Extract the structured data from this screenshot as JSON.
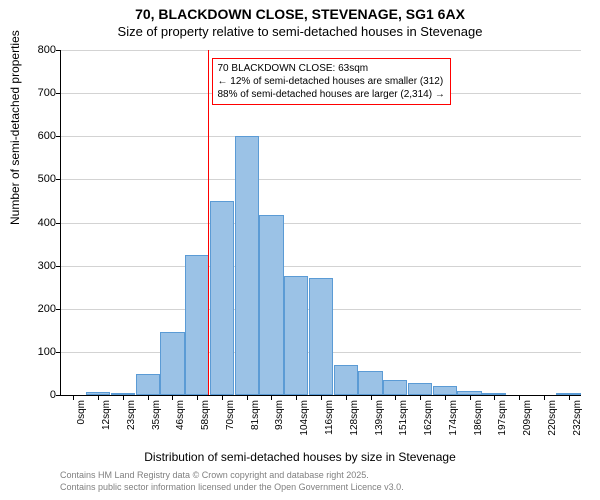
{
  "title": {
    "main": "70, BLACKDOWN CLOSE, STEVENAGE, SG1 6AX",
    "sub": "Size of property relative to semi-detached houses in Stevenage"
  },
  "chart": {
    "type": "histogram",
    "ylabel": "Number of semi-detached properties",
    "xlabel": "Distribution of semi-detached houses by size in Stevenage",
    "ylim": [
      0,
      800
    ],
    "ytick_step": 100,
    "background_color": "#ffffff",
    "grid_color": "#d3d3d3",
    "bar_fill": "#9bc2e6",
    "bar_border": "#5b9bd5",
    "reference_line_color": "#ff0000",
    "reference_x": 63,
    "x_categories": [
      "0sqm",
      "12sqm",
      "23sqm",
      "35sqm",
      "46sqm",
      "58sqm",
      "70sqm",
      "81sqm",
      "93sqm",
      "104sqm",
      "116sqm",
      "128sqm",
      "139sqm",
      "151sqm",
      "162sqm",
      "174sqm",
      "186sqm",
      "197sqm",
      "209sqm",
      "220sqm",
      "232sqm"
    ],
    "x_numeric": [
      0,
      12,
      23,
      35,
      46,
      58,
      70,
      81,
      93,
      104,
      116,
      128,
      139,
      151,
      162,
      174,
      186,
      197,
      209,
      220,
      232
    ],
    "values": [
      0,
      7,
      5,
      48,
      145,
      325,
      450,
      600,
      418,
      275,
      272,
      70,
      55,
      35,
      28,
      20,
      10,
      5,
      0,
      0,
      5
    ],
    "annotation": {
      "line1": "70 BLACKDOWN CLOSE: 63sqm",
      "line2": "← 12% of semi-detached houses are smaller (312)",
      "line3": "88% of semi-detached houses are larger (2,314) →"
    }
  },
  "footer": {
    "line1": "Contains HM Land Registry data © Crown copyright and database right 2025.",
    "line2": "Contains public sector information licensed under the Open Government Licence v3.0."
  }
}
